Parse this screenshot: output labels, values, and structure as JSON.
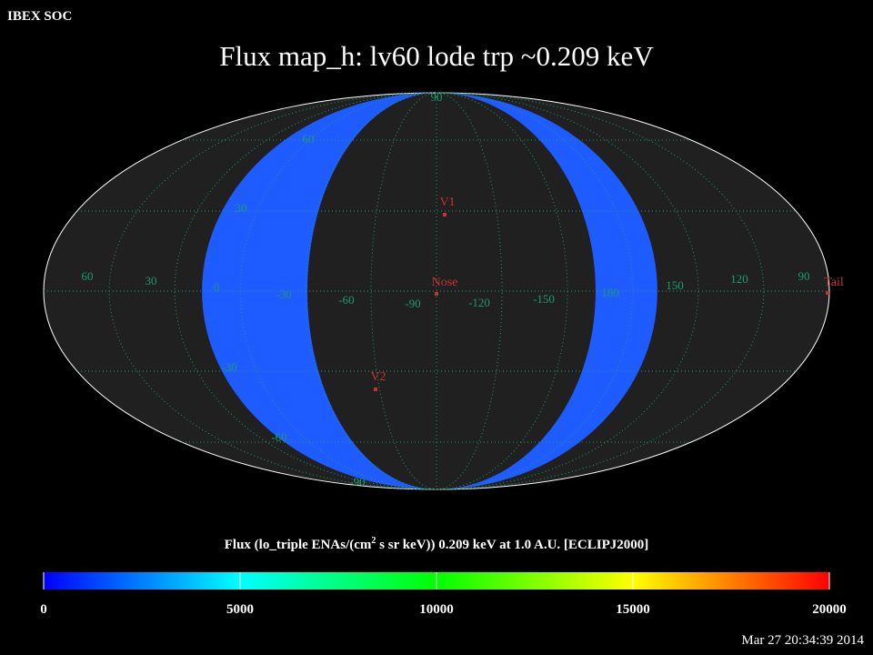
{
  "header": {
    "source": "IBEX SOC",
    "timestamp": "Mar 27 20:34:39 2014"
  },
  "title": "Flux   map_h: lv60 lode trp ~0.209 keV",
  "map": {
    "grid_color": "#1f9a70",
    "band_color": "#1f5cff",
    "latitude_labels": [
      "90",
      "60",
      "30",
      "-30",
      "-60",
      "-90"
    ],
    "longitude_labels": [
      "60",
      "30",
      "0",
      "-30",
      "-60",
      "-90",
      "-120",
      "-150",
      "180",
      "150",
      "120",
      "90"
    ],
    "marker_color": "#c83232",
    "markers": [
      "V1",
      "Nose",
      "V2",
      "Tail"
    ]
  },
  "colorbar": {
    "label_before": "Flux (lo_triple ENAs/(cm",
    "label_sup": "2",
    "label_after": " s sr keV))  0.209 keV at 1.0 A.U. [ECLIPJ2000]",
    "lim": [
      0,
      20000
    ],
    "ticks": [
      0,
      5000,
      10000,
      15000,
      20000
    ],
    "colors": [
      "#0000ff",
      "#00ffff",
      "#00ff00",
      "#ffff00",
      "#ff0000"
    ]
  }
}
